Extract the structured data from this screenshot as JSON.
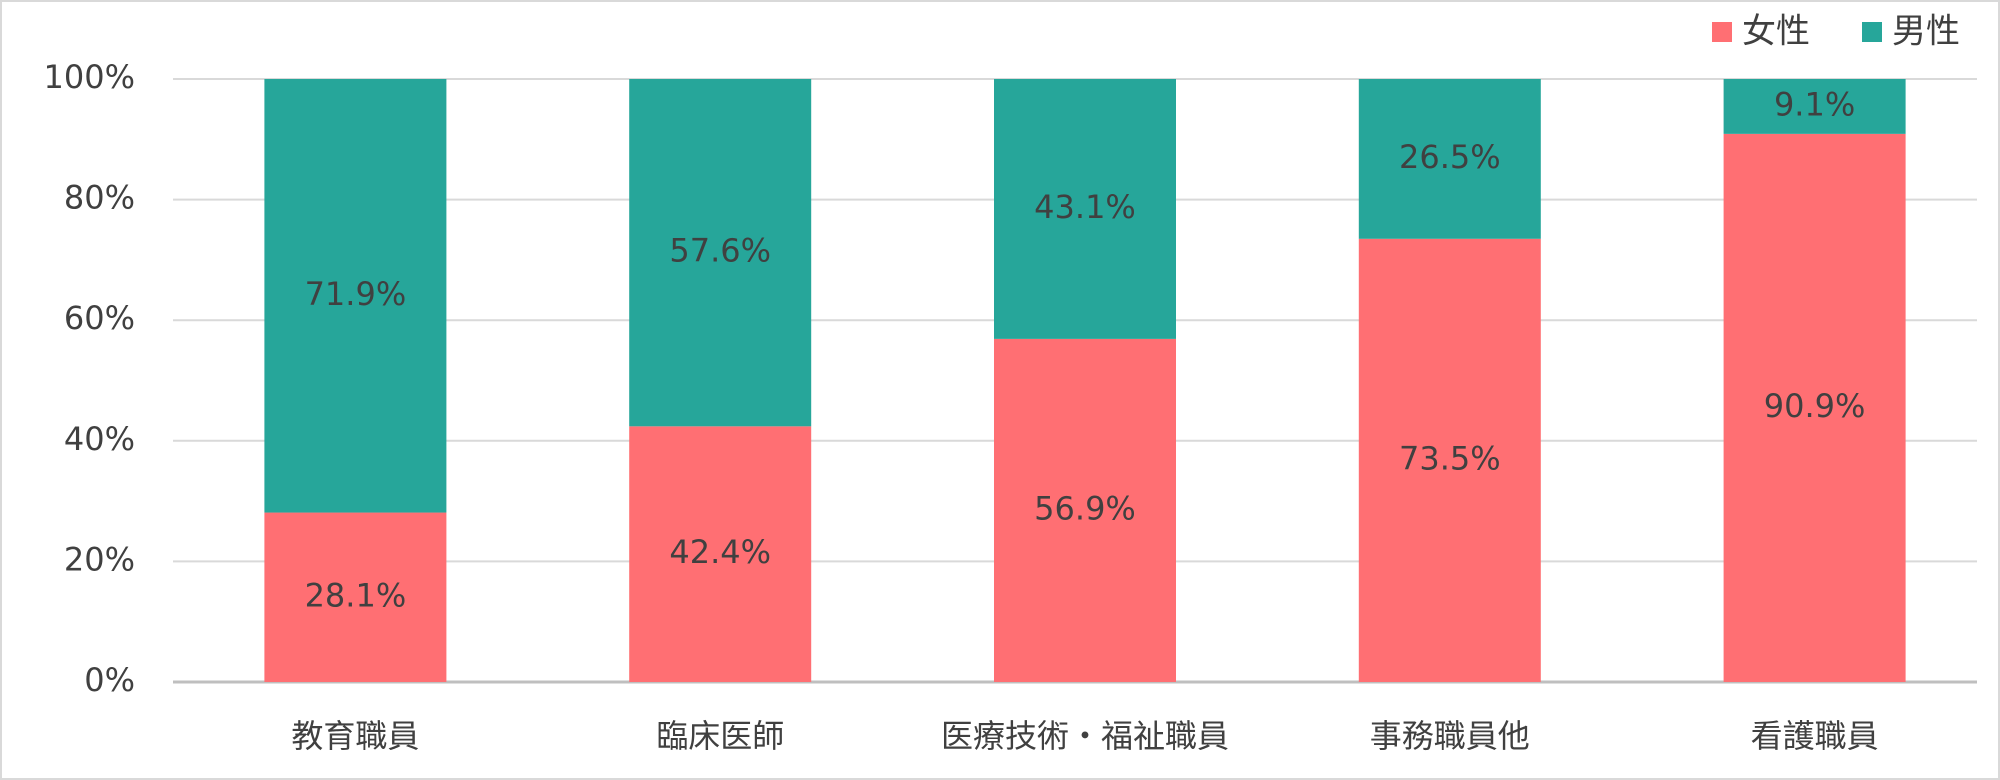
{
  "chart_data": {
    "type": "stacked_bar",
    "categories": [
      "教育職員",
      "臨床医師",
      "医療技術・福祉職員",
      "事務職員他",
      "看護職員"
    ],
    "series": [
      {
        "name": "女性",
        "color": "#ff6f73",
        "values": [
          28.1,
          42.4,
          56.9,
          73.5,
          90.9
        ],
        "value_labels": [
          "28.1%",
          "42.4%",
          "56.9%",
          "73.5%",
          "90.9%"
        ]
      },
      {
        "name": "男性",
        "color": "#26a69a",
        "values": [
          71.9,
          57.6,
          43.1,
          26.5,
          9.1
        ],
        "value_labels": [
          "71.9%",
          "57.6%",
          "43.1%",
          "26.5%",
          "9.1%"
        ]
      }
    ],
    "ylim": [
      0,
      100
    ],
    "yticks": [
      {
        "value": 0,
        "label": "0%"
      },
      {
        "value": 20,
        "label": "20%"
      },
      {
        "value": 40,
        "label": "40%"
      },
      {
        "value": 60,
        "label": "60%"
      },
      {
        "value": 80,
        "label": "80%"
      },
      {
        "value": 100,
        "label": "100%"
      }
    ],
    "grid": true,
    "legend": "upper right"
  }
}
